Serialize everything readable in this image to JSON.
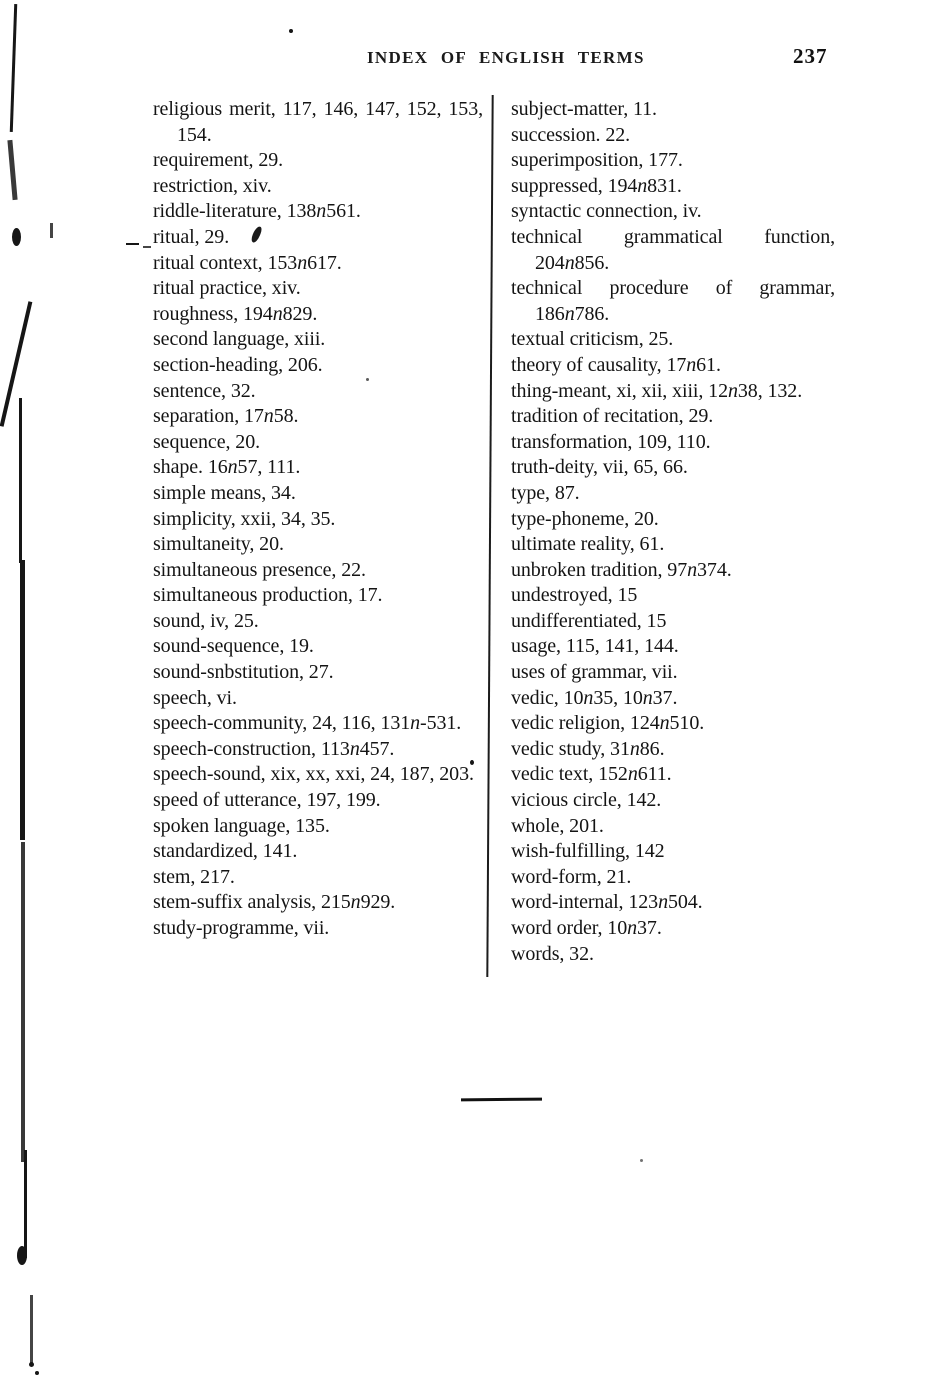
{
  "page": {
    "header": "INDEX OF ENGLISH TERMS",
    "page_number": "237"
  },
  "index": {
    "left_column": [
      "religious merit, 117, 146, 147, 152, 153, 154.",
      "requirement, 29.",
      "restriction, xiv.",
      "riddle-literature, 138n561.",
      "ritual, 29.",
      "ritual context, 153n617.",
      "ritual practice, xiv.",
      "roughness, 194n829.",
      "second language, xiii.",
      "section-heading, 206.",
      "sentence, 32.",
      "separation, 17n58.",
      "sequence, 20.",
      "shape. 16n57, 111.",
      "simple means, 34.",
      "simplicity, xxii, 34, 35.",
      "simultaneity, 20.",
      "simultaneous presence, 22.",
      "simultaneous production, 17.",
      "sound, iv, 25.",
      "sound-sequence, 19.",
      "sound-snbstitution, 27.",
      "speech, vi.",
      "speech-community, 24, 116, 131n-531.",
      "speech-construction, 113n457.",
      "speech-sound, xix, xx, xxi, 24, 187, 203.",
      "speed of utterance, 197, 199.",
      "spoken language, 135.",
      "standardized, 141.",
      "stem, 217.",
      "stem-suffix analysis, 215n929.",
      "study-programme, vii."
    ],
    "right_column": [
      "subject-matter, 11.",
      "succession. 22.",
      "superimposition, 177.",
      "suppressed, 194n831.",
      "syntactic connection, iv.",
      "technical grammatical function, 204n856.",
      "technical procedure of grammar, 186n786.",
      "textual criticism, 25.",
      "theory of causality, 17n61.",
      "thing-meant, xi, xii, xiii, 12n38, 132.",
      "tradition of recitation, 29.",
      "transformation, 109, 110.",
      "truth-deity, vii, 65, 66.",
      "type, 87.",
      "type-phoneme, 20.",
      "ultimate reality, 61.",
      "unbroken tradition, 97n374.",
      "undestroyed, 15",
      "undifferentiated, 15",
      "usage, 115, 141, 144.",
      "uses of grammar, vii.",
      "vedic, 10n35, 10n37.",
      "vedic religion, 124n510.",
      "vedic study, 31n86.",
      "vedic text, 152n611.",
      "vicious circle, 142.",
      "whole, 201.",
      "wish-fulfilling, 142",
      "word-form, 21.",
      "word-internal, 123n504.",
      "word order, 10n37.",
      "words, 32."
    ]
  }
}
